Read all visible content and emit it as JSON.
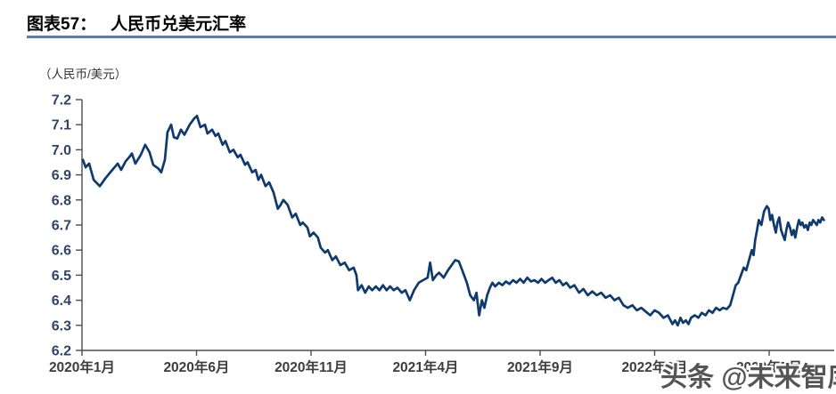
{
  "figure": {
    "label": "图表57：",
    "title": "人民币兑美元汇率",
    "unit_label": "（人民币/美元）"
  },
  "watermark": {
    "text": "头条 @未来智库"
  },
  "colors": {
    "line": "#0f3a6d",
    "axis": "#4d4d4d",
    "title_rule": "#5b7dad",
    "y_tick_label": "#2f4468",
    "x_tick_label": "#3d3d3d",
    "watermark_gray": "#555555"
  },
  "chart_data": {
    "type": "line",
    "title": "人民币兑美元汇率",
    "ylabel": "（人民币/美元）",
    "xlabel": "",
    "ylim": [
      6.2,
      7.2
    ],
    "ytick_step": 0.1,
    "ytick_labels": [
      "7.2",
      "7.1",
      "7.0",
      "6.9",
      "6.8",
      "6.7",
      "6.6",
      "6.5",
      "6.4",
      "6.3",
      "6.2"
    ],
    "xtick_labels": [
      "2020年1月",
      "2020年6月",
      "2020年11月",
      "2021年4月",
      "2021年9月",
      "2022年2月",
      "2022年7月"
    ],
    "xtick_month_positions": [
      0,
      5,
      10,
      15,
      20,
      25,
      30
    ],
    "x_unit": "months since 2020-01",
    "x_range_months": [
      0,
      32.5
    ],
    "grid": false,
    "legend": false,
    "series": [
      {
        "name": "人民币兑美元汇率",
        "points": [
          [
            0.04,
            6.96
          ],
          [
            0.16,
            6.93
          ],
          [
            0.31,
            6.945
          ],
          [
            0.51,
            6.88
          ],
          [
            0.78,
            6.855
          ],
          [
            1.01,
            6.885
          ],
          [
            1.28,
            6.915
          ],
          [
            1.56,
            6.945
          ],
          [
            1.71,
            6.92
          ],
          [
            1.91,
            6.955
          ],
          [
            2.06,
            6.97
          ],
          [
            2.18,
            6.985
          ],
          [
            2.33,
            6.945
          ],
          [
            2.57,
            6.98
          ],
          [
            2.76,
            7.02
          ],
          [
            2.95,
            6.99
          ],
          [
            3.11,
            6.94
          ],
          [
            3.34,
            6.925
          ],
          [
            3.46,
            6.91
          ],
          [
            3.62,
            6.96
          ],
          [
            3.73,
            7.07
          ],
          [
            3.89,
            7.1
          ],
          [
            4.01,
            7.05
          ],
          [
            4.16,
            7.045
          ],
          [
            4.32,
            7.08
          ],
          [
            4.47,
            7.06
          ],
          [
            4.7,
            7.1
          ],
          [
            4.9,
            7.125
          ],
          [
            5.02,
            7.135
          ],
          [
            5.17,
            7.09
          ],
          [
            5.37,
            7.1
          ],
          [
            5.48,
            7.065
          ],
          [
            5.68,
            7.08
          ],
          [
            5.83,
            7.055
          ],
          [
            5.95,
            7.065
          ],
          [
            6.14,
            7.02
          ],
          [
            6.26,
            7.035
          ],
          [
            6.45,
            6.99
          ],
          [
            6.61,
            7.0
          ],
          [
            6.8,
            6.97
          ],
          [
            6.92,
            6.98
          ],
          [
            7.12,
            6.94
          ],
          [
            7.23,
            6.95
          ],
          [
            7.43,
            6.91
          ],
          [
            7.58,
            6.92
          ],
          [
            7.7,
            6.88
          ],
          [
            7.82,
            6.9
          ],
          [
            8.01,
            6.855
          ],
          [
            8.17,
            6.87
          ],
          [
            8.36,
            6.83
          ],
          [
            8.55,
            6.765
          ],
          [
            8.67,
            6.78
          ],
          [
            8.79,
            6.8
          ],
          [
            8.98,
            6.78
          ],
          [
            9.18,
            6.73
          ],
          [
            9.33,
            6.745
          ],
          [
            9.53,
            6.7
          ],
          [
            9.64,
            6.71
          ],
          [
            9.84,
            6.69
          ],
          [
            9.95,
            6.655
          ],
          [
            10.11,
            6.67
          ],
          [
            10.3,
            6.65
          ],
          [
            10.42,
            6.61
          ],
          [
            10.61,
            6.59
          ],
          [
            10.73,
            6.6
          ],
          [
            10.93,
            6.56
          ],
          [
            11.08,
            6.575
          ],
          [
            11.28,
            6.54
          ],
          [
            11.47,
            6.55
          ],
          [
            11.66,
            6.52
          ],
          [
            11.86,
            6.53
          ],
          [
            11.98,
            6.5
          ],
          [
            12.05,
            6.44
          ],
          [
            12.21,
            6.46
          ],
          [
            12.36,
            6.43
          ],
          [
            12.52,
            6.455
          ],
          [
            12.67,
            6.44
          ],
          [
            12.83,
            6.455
          ],
          [
            12.99,
            6.44
          ],
          [
            13.14,
            6.46
          ],
          [
            13.3,
            6.44
          ],
          [
            13.45,
            6.455
          ],
          [
            13.61,
            6.44
          ],
          [
            13.77,
            6.45
          ],
          [
            13.96,
            6.43
          ],
          [
            14.12,
            6.44
          ],
          [
            14.31,
            6.4
          ],
          [
            14.5,
            6.44
          ],
          [
            14.7,
            6.47
          ],
          [
            14.89,
            6.48
          ],
          [
            15.09,
            6.49
          ],
          [
            15.2,
            6.55
          ],
          [
            15.32,
            6.48
          ],
          [
            15.47,
            6.5
          ],
          [
            15.59,
            6.51
          ],
          [
            15.79,
            6.49
          ],
          [
            15.98,
            6.52
          ],
          [
            16.14,
            6.54
          ],
          [
            16.29,
            6.56
          ],
          [
            16.45,
            6.555
          ],
          [
            16.6,
            6.52
          ],
          [
            16.8,
            6.47
          ],
          [
            16.95,
            6.42
          ],
          [
            17.11,
            6.4
          ],
          [
            17.22,
            6.43
          ],
          [
            17.34,
            6.34
          ],
          [
            17.46,
            6.4
          ],
          [
            17.57,
            6.37
          ],
          [
            17.69,
            6.42
          ],
          [
            17.81,
            6.45
          ],
          [
            17.92,
            6.47
          ],
          [
            18.04,
            6.455
          ],
          [
            18.2,
            6.47
          ],
          [
            18.35,
            6.46
          ],
          [
            18.51,
            6.475
          ],
          [
            18.66,
            6.465
          ],
          [
            18.82,
            6.48
          ],
          [
            18.97,
            6.47
          ],
          [
            19.13,
            6.485
          ],
          [
            19.28,
            6.47
          ],
          [
            19.44,
            6.49
          ],
          [
            19.6,
            6.475
          ],
          [
            19.75,
            6.48
          ],
          [
            19.91,
            6.47
          ],
          [
            20.06,
            6.485
          ],
          [
            20.22,
            6.47
          ],
          [
            20.37,
            6.48
          ],
          [
            20.53,
            6.49
          ],
          [
            20.68,
            6.47
          ],
          [
            20.84,
            6.48
          ],
          [
            21.0,
            6.46
          ],
          [
            21.15,
            6.47
          ],
          [
            21.31,
            6.45
          ],
          [
            21.5,
            6.46
          ],
          [
            21.7,
            6.43
          ],
          [
            21.89,
            6.445
          ],
          [
            22.08,
            6.42
          ],
          [
            22.28,
            6.435
          ],
          [
            22.47,
            6.42
          ],
          [
            22.67,
            6.43
          ],
          [
            22.86,
            6.41
          ],
          [
            23.06,
            6.42
          ],
          [
            23.25,
            6.4
          ],
          [
            23.44,
            6.41
          ],
          [
            23.64,
            6.38
          ],
          [
            23.83,
            6.37
          ],
          [
            24.03,
            6.38
          ],
          [
            24.22,
            6.36
          ],
          [
            24.42,
            6.37
          ],
          [
            24.61,
            6.355
          ],
          [
            24.81,
            6.34
          ],
          [
            25.0,
            6.36
          ],
          [
            25.19,
            6.35
          ],
          [
            25.39,
            6.33
          ],
          [
            25.58,
            6.34
          ],
          [
            25.78,
            6.305
          ],
          [
            25.89,
            6.32
          ],
          [
            26.01,
            6.3
          ],
          [
            26.13,
            6.33
          ],
          [
            26.24,
            6.31
          ],
          [
            26.36,
            6.32
          ],
          [
            26.48,
            6.305
          ],
          [
            26.59,
            6.33
          ],
          [
            26.75,
            6.34
          ],
          [
            26.91,
            6.33
          ],
          [
            27.06,
            6.35
          ],
          [
            27.22,
            6.34
          ],
          [
            27.37,
            6.36
          ],
          [
            27.53,
            6.35
          ],
          [
            27.68,
            6.37
          ],
          [
            27.84,
            6.36
          ],
          [
            27.99,
            6.37
          ],
          [
            28.15,
            6.365
          ],
          [
            28.3,
            6.38
          ],
          [
            28.42,
            6.42
          ],
          [
            28.54,
            6.46
          ],
          [
            28.65,
            6.47
          ],
          [
            28.77,
            6.5
          ],
          [
            28.89,
            6.53
          ],
          [
            29.0,
            6.52
          ],
          [
            29.12,
            6.56
          ],
          [
            29.24,
            6.6
          ],
          [
            29.32,
            6.58
          ],
          [
            29.39,
            6.64
          ],
          [
            29.47,
            6.68
          ],
          [
            29.55,
            6.72
          ],
          [
            29.66,
            6.7
          ],
          [
            29.78,
            6.755
          ],
          [
            29.9,
            6.775
          ],
          [
            29.98,
            6.765
          ],
          [
            30.05,
            6.72
          ],
          [
            30.13,
            6.74
          ],
          [
            30.21,
            6.7
          ],
          [
            30.29,
            6.67
          ],
          [
            30.36,
            6.71
          ],
          [
            30.44,
            6.73
          ],
          [
            30.52,
            6.68
          ],
          [
            30.6,
            6.66
          ],
          [
            30.68,
            6.64
          ],
          [
            30.75,
            6.68
          ],
          [
            30.83,
            6.71
          ],
          [
            30.91,
            6.69
          ],
          [
            30.99,
            6.66
          ],
          [
            31.07,
            6.68
          ],
          [
            31.14,
            6.65
          ],
          [
            31.22,
            6.69
          ],
          [
            31.3,
            6.72
          ],
          [
            31.38,
            6.7
          ],
          [
            31.45,
            6.71
          ],
          [
            31.53,
            6.69
          ],
          [
            31.61,
            6.7
          ],
          [
            31.69,
            6.68
          ],
          [
            31.77,
            6.71
          ],
          [
            31.84,
            6.7
          ],
          [
            31.92,
            6.72
          ],
          [
            32.0,
            6.71
          ],
          [
            32.08,
            6.7
          ],
          [
            32.15,
            6.72
          ],
          [
            32.23,
            6.71
          ],
          [
            32.31,
            6.73
          ],
          [
            32.39,
            6.72
          ]
        ]
      }
    ]
  }
}
